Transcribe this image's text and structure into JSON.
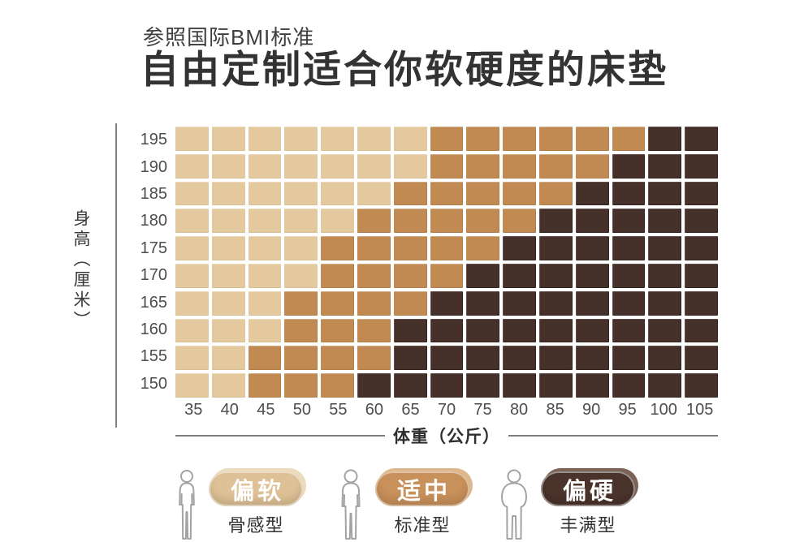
{
  "header": {
    "subtitle": "参照国际BMI标准",
    "title": "自由定制适合你软硬度的床垫"
  },
  "chart_data": {
    "type": "heatmap",
    "title": "自由定制适合你软硬度的床垫",
    "subtitle": "参照国际BMI标准",
    "xlabel": "体重（公斤）",
    "ylabel": "身高（厘米）",
    "x_categories": [
      35,
      40,
      45,
      50,
      55,
      60,
      65,
      70,
      75,
      80,
      85,
      90,
      95,
      100,
      105
    ],
    "y_categories": [
      195,
      190,
      185,
      180,
      175,
      170,
      165,
      160,
      155,
      150
    ],
    "value_labels": {
      "S": "偏软",
      "M": "适中",
      "H": "偏硬"
    },
    "cell_colors": {
      "S": "#e4c99e",
      "M": "#c18a52",
      "H": "#46302a"
    },
    "grid_gap_color": "#ffffff",
    "matrix": [
      [
        "S",
        "S",
        "S",
        "S",
        "S",
        "S",
        "S",
        "M",
        "M",
        "M",
        "M",
        "M",
        "M",
        "H",
        "H"
      ],
      [
        "S",
        "S",
        "S",
        "S",
        "S",
        "S",
        "S",
        "M",
        "M",
        "M",
        "M",
        "M",
        "H",
        "H",
        "H"
      ],
      [
        "S",
        "S",
        "S",
        "S",
        "S",
        "S",
        "M",
        "M",
        "M",
        "M",
        "M",
        "H",
        "H",
        "H",
        "H"
      ],
      [
        "S",
        "S",
        "S",
        "S",
        "S",
        "M",
        "M",
        "M",
        "M",
        "M",
        "H",
        "H",
        "H",
        "H",
        "H"
      ],
      [
        "S",
        "S",
        "S",
        "S",
        "M",
        "M",
        "M",
        "M",
        "M",
        "H",
        "H",
        "H",
        "H",
        "H",
        "H"
      ],
      [
        "S",
        "S",
        "S",
        "S",
        "M",
        "M",
        "M",
        "M",
        "H",
        "H",
        "H",
        "H",
        "H",
        "H",
        "H"
      ],
      [
        "S",
        "S",
        "S",
        "M",
        "M",
        "M",
        "M",
        "H",
        "H",
        "H",
        "H",
        "H",
        "H",
        "H",
        "H"
      ],
      [
        "S",
        "S",
        "S",
        "M",
        "M",
        "M",
        "H",
        "H",
        "H",
        "H",
        "H",
        "H",
        "H",
        "H",
        "H"
      ],
      [
        "S",
        "S",
        "M",
        "M",
        "M",
        "M",
        "H",
        "H",
        "H",
        "H",
        "H",
        "H",
        "H",
        "H",
        "H"
      ],
      [
        "S",
        "S",
        "M",
        "M",
        "M",
        "H",
        "H",
        "H",
        "H",
        "H",
        "H",
        "H",
        "H",
        "H",
        "H"
      ]
    ]
  },
  "legend": {
    "items": [
      {
        "label": "偏软",
        "sublabel": "骨感型",
        "figure": "slim",
        "pill_color": "#dec196",
        "pill_light_color": "#ecdcbd"
      },
      {
        "label": "适中",
        "sublabel": "标准型",
        "figure": "standard",
        "pill_color": "#c8905a",
        "pill_light_color": "#ddb88d"
      },
      {
        "label": "偏硬",
        "sublabel": "丰满型",
        "figure": "plump",
        "pill_color": "#4a332b",
        "pill_light_color": "#7a6457"
      }
    ]
  }
}
